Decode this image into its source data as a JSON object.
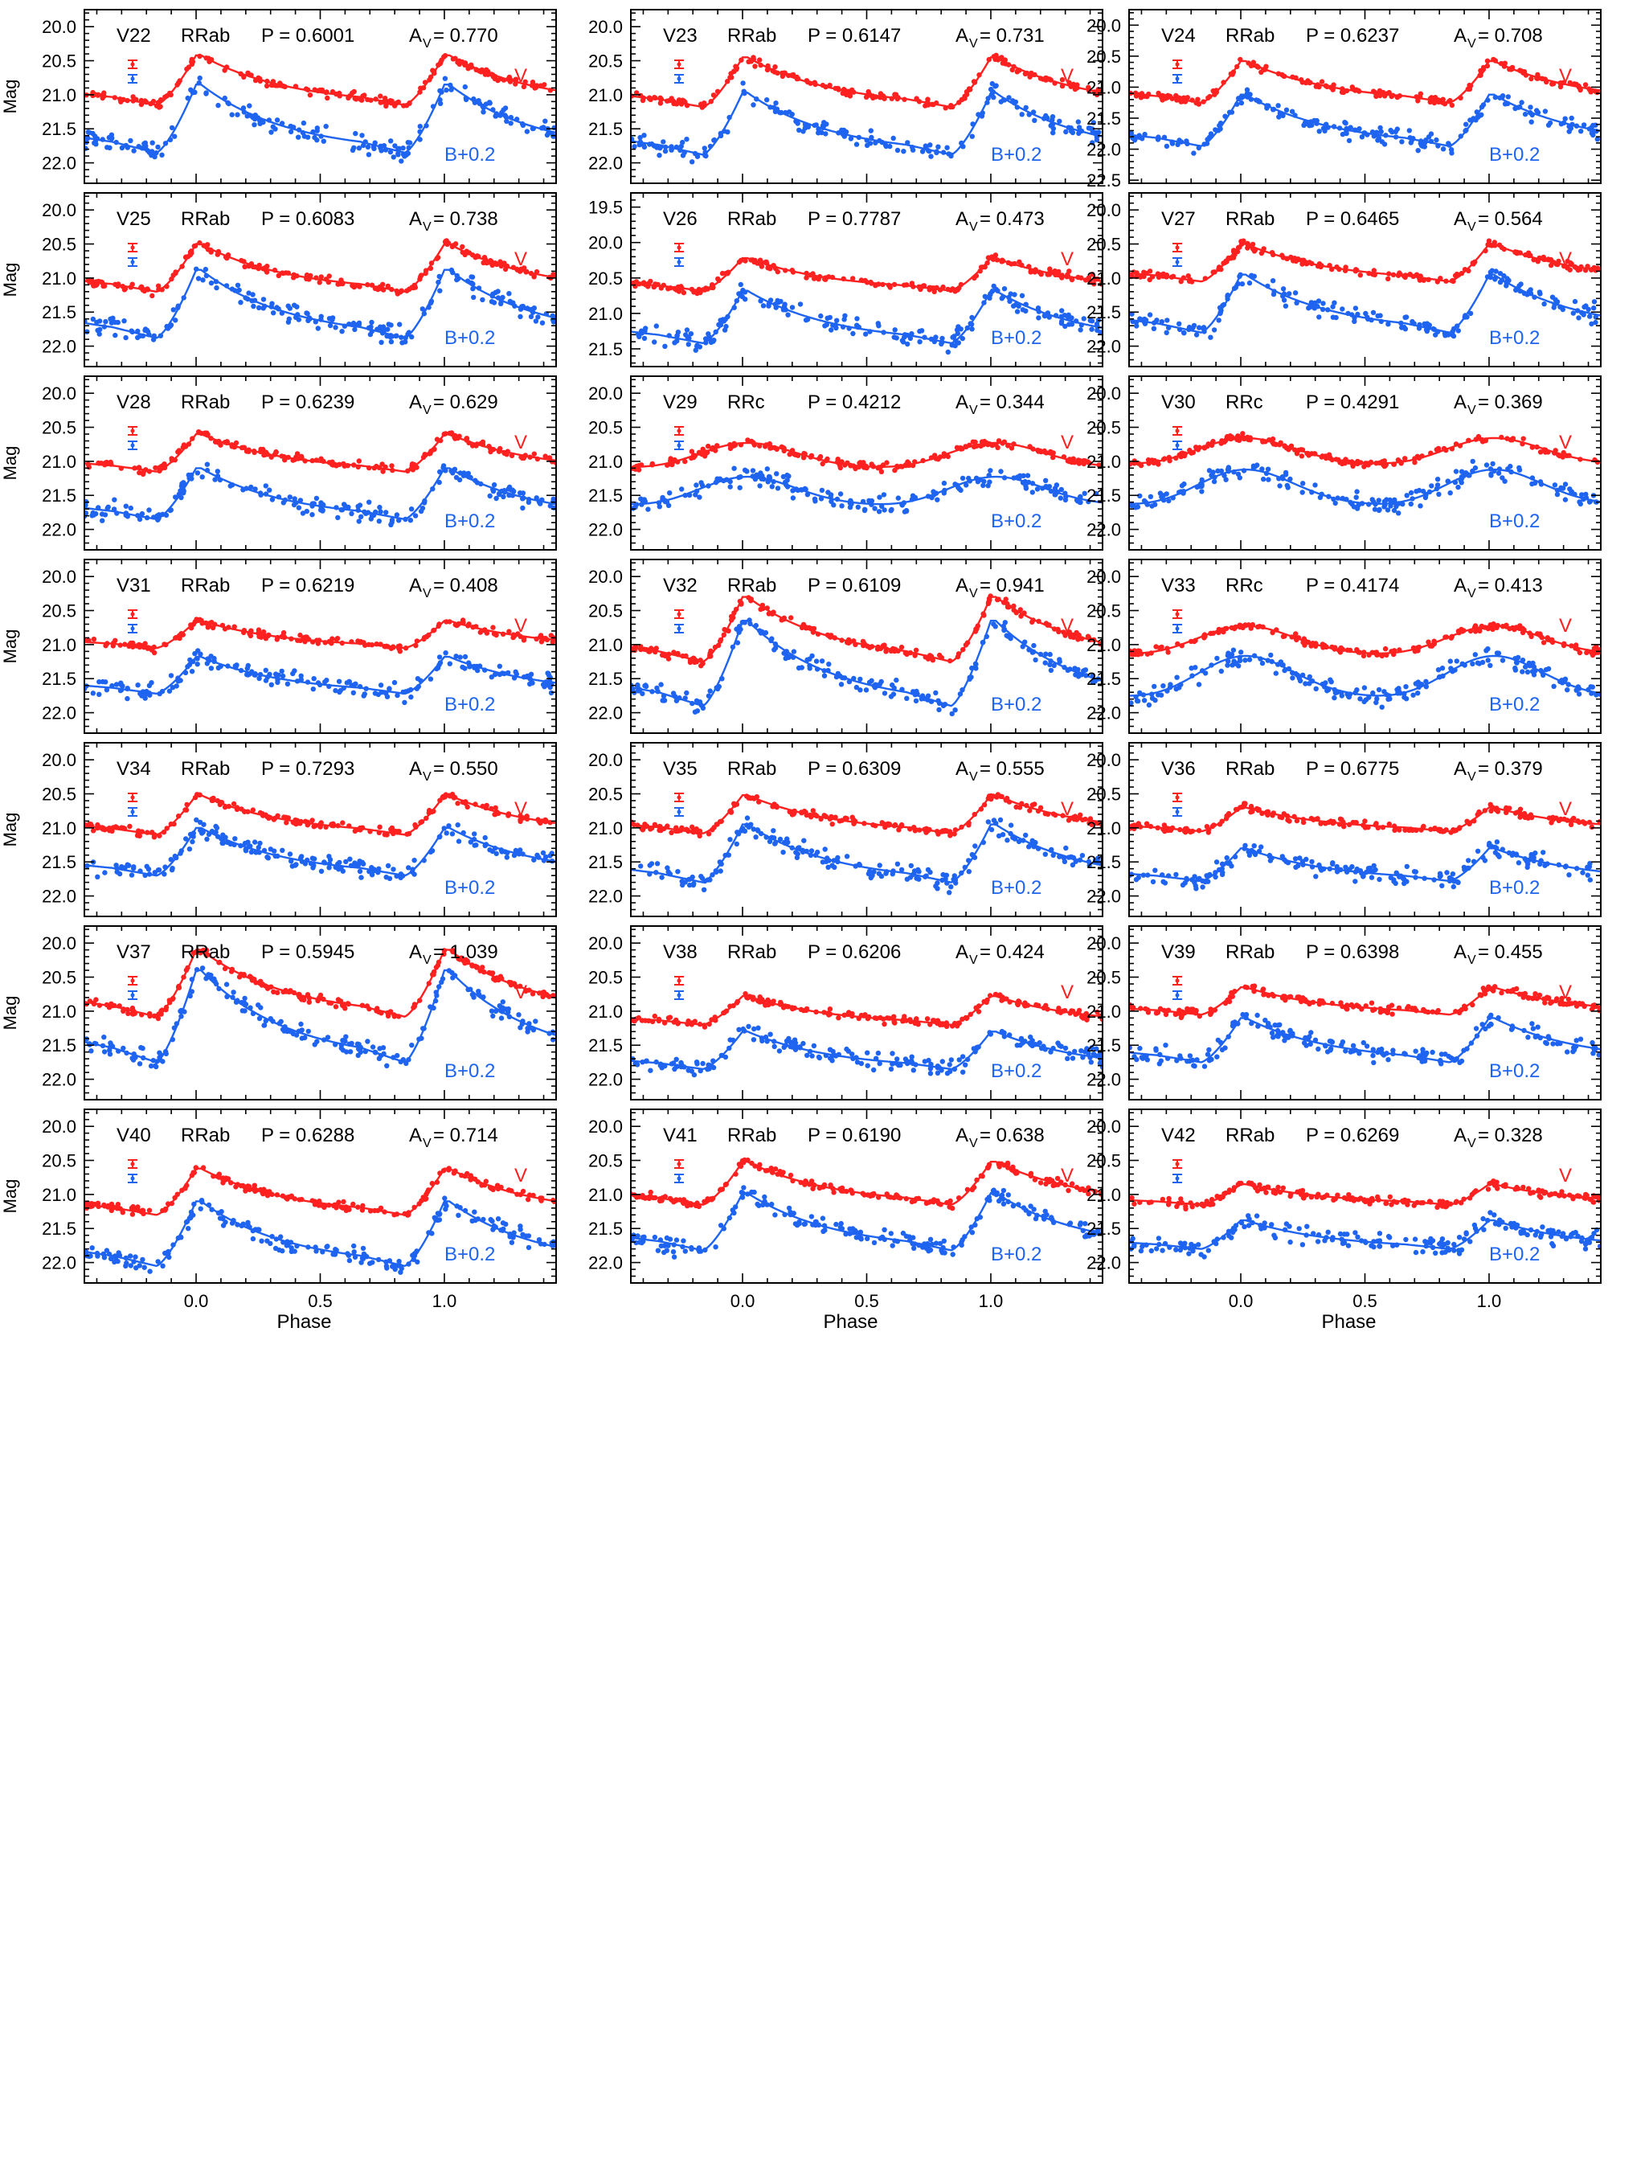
{
  "figure": {
    "ylabel": "Mag",
    "xlabel": "Phase",
    "x_ticks": [
      "0.0",
      "0.5",
      "1.0"
    ],
    "band_label_v": "V",
    "band_label_b": "B+0.2",
    "colors": {
      "v_band": "#ff2020",
      "b_band": "#1e64f0",
      "frame": "#000000"
    }
  },
  "chart_data": [
    {
      "type": "scatter",
      "title": "V22",
      "class": "RRab",
      "period": "P = 0.6001",
      "amplitude": "A",
      "amp_sub": "V",
      "amp_value": " = 0.770",
      "xlim": [
        -0.45,
        1.45
      ],
      "ylim": [
        22.3,
        19.75
      ],
      "ticks": [
        "20.0",
        "20.5",
        "21.0",
        "21.5",
        "22.0"
      ],
      "v_base": 21.15,
      "v_peak": 20.42,
      "b_base": 21.85,
      "b_peak": 20.85,
      "series": [
        {
          "name": "V",
          "color": "#ff2020"
        },
        {
          "name": "B+0.2",
          "color": "#1e64f0"
        }
      ]
    },
    {
      "type": "scatter",
      "title": "V23",
      "class": "RRab",
      "period": "P = 0.6147",
      "amplitude": "A",
      "amp_sub": "V",
      "amp_value": " = 0.731",
      "xlim": [
        -0.45,
        1.45
      ],
      "ylim": [
        22.3,
        19.75
      ],
      "ticks": [
        "20.0",
        "20.5",
        "21.0",
        "21.5",
        "22.0"
      ],
      "v_base": 21.18,
      "v_peak": 20.45,
      "b_base": 21.88,
      "b_peak": 20.97,
      "series": [
        {
          "name": "V",
          "color": "#ff2020"
        },
        {
          "name": "B+0.2",
          "color": "#1e64f0"
        }
      ]
    },
    {
      "type": "scatter",
      "title": "V24",
      "class": "RRab",
      "period": "P = 0.6237",
      "amplitude": "A",
      "amp_sub": "V",
      "amp_value": " = 0.708",
      "xlim": [
        -0.45,
        1.45
      ],
      "ylim": [
        22.55,
        19.75
      ],
      "ticks": [
        "20.0",
        "20.5",
        "21.0",
        "21.5",
        "22.0",
        "22.5"
      ],
      "v_base": 21.25,
      "v_peak": 20.58,
      "b_base": 21.95,
      "b_peak": 21.12,
      "series": [
        {
          "name": "V",
          "color": "#ff2020"
        },
        {
          "name": "B+0.2",
          "color": "#1e64f0"
        }
      ]
    },
    {
      "type": "scatter",
      "title": "V25",
      "class": "RRab",
      "period": "P = 0.6083",
      "amplitude": "A",
      "amp_sub": "V",
      "amp_value": " = 0.738",
      "xlim": [
        -0.45,
        1.45
      ],
      "ylim": [
        22.3,
        19.75
      ],
      "ticks": [
        "20.0",
        "20.5",
        "21.0",
        "21.5",
        "22.0"
      ],
      "v_base": 21.2,
      "v_peak": 20.5,
      "b_base": 21.88,
      "b_peak": 20.88,
      "series": [
        {
          "name": "V",
          "color": "#ff2020"
        },
        {
          "name": "B+0.2",
          "color": "#1e64f0"
        }
      ]
    },
    {
      "type": "scatter",
      "title": "V26",
      "class": "RRab",
      "period": "P = 0.7787",
      "amplitude": "A",
      "amp_sub": "V",
      "amp_value": " = 0.473",
      "xlim": [
        -0.45,
        1.45
      ],
      "ylim": [
        21.75,
        19.3
      ],
      "ticks": [
        "19.5",
        "20.0",
        "20.5",
        "21.0",
        "21.5"
      ],
      "v_base": 20.68,
      "v_peak": 20.22,
      "b_base": 21.42,
      "b_peak": 20.68,
      "series": [
        {
          "name": "V",
          "color": "#ff2020"
        },
        {
          "name": "B+0.2",
          "color": "#1e64f0"
        }
      ]
    },
    {
      "type": "scatter",
      "title": "V27",
      "class": "RRab",
      "period": "P = 0.6465",
      "amplitude": "A",
      "amp_sub": "V",
      "amp_value": " = 0.564",
      "xlim": [
        -0.45,
        1.45
      ],
      "ylim": [
        22.3,
        19.75
      ],
      "ticks": [
        "20.0",
        "20.5",
        "21.0",
        "21.5",
        "22.0"
      ],
      "v_base": 21.05,
      "v_peak": 20.5,
      "b_base": 21.8,
      "b_peak": 20.95,
      "series": [
        {
          "name": "V",
          "color": "#ff2020"
        },
        {
          "name": "B+0.2",
          "color": "#1e64f0"
        }
      ]
    },
    {
      "type": "scatter",
      "title": "V28",
      "class": "RRab",
      "period": "P = 0.6239",
      "amplitude": "A",
      "amp_sub": "V",
      "amp_value": " = 0.629",
      "xlim": [
        -0.45,
        1.45
      ],
      "ylim": [
        22.3,
        19.75
      ],
      "ticks": [
        "20.0",
        "20.5",
        "21.0",
        "21.5",
        "22.0"
      ],
      "v_base": 21.15,
      "v_peak": 20.6,
      "b_base": 21.85,
      "b_peak": 21.1,
      "series": [
        {
          "name": "V",
          "color": "#ff2020"
        },
        {
          "name": "B+0.2",
          "color": "#1e64f0"
        }
      ]
    },
    {
      "type": "scatter",
      "title": "V29",
      "class": "RRc",
      "period": "P = 0.4212",
      "amplitude": "A",
      "amp_sub": "V",
      "amp_value": " = 0.344",
      "xlim": [
        -0.45,
        1.45
      ],
      "ylim": [
        22.3,
        19.75
      ],
      "ticks": [
        "20.0",
        "20.5",
        "21.0",
        "21.5",
        "22.0"
      ],
      "v_base": 21.1,
      "v_peak": 20.75,
      "b_base": 21.65,
      "b_peak": 21.25,
      "series": [
        {
          "name": "V",
          "color": "#ff2020"
        },
        {
          "name": "B+0.2",
          "color": "#1e64f0"
        }
      ]
    },
    {
      "type": "scatter",
      "title": "V30",
      "class": "RRc",
      "period": "P = 0.4291",
      "amplitude": "A",
      "amp_sub": "V",
      "amp_value": " = 0.369",
      "xlim": [
        -0.45,
        1.45
      ],
      "ylim": [
        22.3,
        19.75
      ],
      "ticks": [
        "20.0",
        "20.5",
        "21.0",
        "21.5",
        "22.0"
      ],
      "v_base": 21.05,
      "v_peak": 20.68,
      "b_base": 21.65,
      "b_peak": 21.15,
      "series": [
        {
          "name": "V",
          "color": "#ff2020"
        },
        {
          "name": "B+0.2",
          "color": "#1e64f0"
        }
      ]
    },
    {
      "type": "scatter",
      "title": "V31",
      "class": "RRab",
      "period": "P = 0.6219",
      "amplitude": "A",
      "amp_sub": "V",
      "amp_value": " = 0.408",
      "xlim": [
        -0.45,
        1.45
      ],
      "ylim": [
        22.3,
        19.75
      ],
      "ticks": [
        "20.0",
        "20.5",
        "21.0",
        "21.5",
        "22.0"
      ],
      "v_base": 21.05,
      "v_peak": 20.65,
      "b_base": 21.72,
      "b_peak": 21.18,
      "series": [
        {
          "name": "V",
          "color": "#ff2020"
        },
        {
          "name": "B+0.2",
          "color": "#1e64f0"
        }
      ]
    },
    {
      "type": "scatter",
      "title": "V32",
      "class": "RRab",
      "period": "P = 0.6109",
      "amplitude": "A",
      "amp_sub": "V",
      "amp_value": " = 0.941",
      "xlim": [
        -0.45,
        1.45
      ],
      "ylim": [
        22.3,
        19.75
      ],
      "ticks": [
        "20.0",
        "20.5",
        "21.0",
        "21.5",
        "22.0"
      ],
      "v_base": 21.25,
      "v_peak": 20.3,
      "b_base": 21.9,
      "b_peak": 20.65,
      "series": [
        {
          "name": "V",
          "color": "#ff2020"
        },
        {
          "name": "B+0.2",
          "color": "#1e64f0"
        }
      ]
    },
    {
      "type": "scatter",
      "title": "V33",
      "class": "RRc",
      "period": "P = 0.4174",
      "amplitude": "A",
      "amp_sub": "V",
      "amp_value": " = 0.413",
      "xlim": [
        -0.45,
        1.45
      ],
      "ylim": [
        22.3,
        19.75
      ],
      "ticks": [
        "20.0",
        "20.5",
        "21.0",
        "21.5",
        "22.0"
      ],
      "v_base": 21.15,
      "v_peak": 20.75,
      "b_base": 21.78,
      "b_peak": 21.2,
      "series": [
        {
          "name": "V",
          "color": "#ff2020"
        },
        {
          "name": "B+0.2",
          "color": "#1e64f0"
        }
      ]
    },
    {
      "type": "scatter",
      "title": "V34",
      "class": "RRab",
      "period": "P = 0.7293",
      "amplitude": "A",
      "amp_sub": "V",
      "amp_value": " = 0.550",
      "xlim": [
        -0.45,
        1.45
      ],
      "ylim": [
        22.3,
        19.75
      ],
      "ticks": [
        "20.0",
        "20.5",
        "21.0",
        "21.5",
        "22.0"
      ],
      "v_base": 21.1,
      "v_peak": 20.52,
      "b_base": 21.7,
      "b_peak": 21.0,
      "series": [
        {
          "name": "V",
          "color": "#ff2020"
        },
        {
          "name": "B+0.2",
          "color": "#1e64f0"
        }
      ]
    },
    {
      "type": "scatter",
      "title": "V35",
      "class": "RRab",
      "period": "P = 0.6309",
      "amplitude": "A",
      "amp_sub": "V",
      "amp_value": " = 0.555",
      "xlim": [
        -0.45,
        1.45
      ],
      "ylim": [
        22.3,
        19.75
      ],
      "ticks": [
        "20.0",
        "20.5",
        "21.0",
        "21.5",
        "22.0"
      ],
      "v_base": 21.08,
      "v_peak": 20.52,
      "b_base": 21.8,
      "b_peak": 20.95,
      "series": [
        {
          "name": "V",
          "color": "#ff2020"
        },
        {
          "name": "B+0.2",
          "color": "#1e64f0"
        }
      ]
    },
    {
      "type": "scatter",
      "title": "V36",
      "class": "RRab",
      "period": "P = 0.6775",
      "amplitude": "A",
      "amp_sub": "V",
      "amp_value": " = 0.379",
      "xlim": [
        -0.45,
        1.45
      ],
      "ylim": [
        22.3,
        19.75
      ],
      "ticks": [
        "20.0",
        "20.5",
        "21.0",
        "21.5",
        "22.0"
      ],
      "v_base": 21.05,
      "v_peak": 20.7,
      "b_base": 21.78,
      "b_peak": 21.3,
      "series": [
        {
          "name": "V",
          "color": "#ff2020"
        },
        {
          "name": "B+0.2",
          "color": "#1e64f0"
        }
      ]
    },
    {
      "type": "scatter",
      "title": "V37",
      "class": "RRab",
      "period": "P = 0.5945",
      "amplitude": "A",
      "amp_sub": "V",
      "amp_value": " = 1.039",
      "xlim": [
        -0.45,
        1.45
      ],
      "ylim": [
        22.3,
        19.75
      ],
      "ticks": [
        "20.0",
        "20.5",
        "21.0",
        "21.5",
        "22.0"
      ],
      "v_base": 21.08,
      "v_peak": 20.1,
      "b_base": 21.75,
      "b_peak": 20.4,
      "series": [
        {
          "name": "V",
          "color": "#ff2020"
        },
        {
          "name": "B+0.2",
          "color": "#1e64f0"
        }
      ]
    },
    {
      "type": "scatter",
      "title": "V38",
      "class": "RRab",
      "period": "P = 0.6206",
      "amplitude": "A",
      "amp_sub": "V",
      "amp_value": " = 0.424",
      "xlim": [
        -0.45,
        1.45
      ],
      "ylim": [
        22.3,
        19.75
      ],
      "ticks": [
        "20.0",
        "20.5",
        "21.0",
        "21.5",
        "22.0"
      ],
      "v_base": 21.2,
      "v_peak": 20.78,
      "b_base": 21.85,
      "b_peak": 21.3,
      "series": [
        {
          "name": "V",
          "color": "#ff2020"
        },
        {
          "name": "B+0.2",
          "color": "#1e64f0"
        }
      ]
    },
    {
      "type": "scatter",
      "title": "V39",
      "class": "RRab",
      "period": "P = 0.6398",
      "amplitude": "A",
      "amp_sub": "V",
      "amp_value": " = 0.455",
      "xlim": [
        -0.45,
        1.45
      ],
      "ylim": [
        22.3,
        19.75
      ],
      "ticks": [
        "20.0",
        "20.5",
        "21.0",
        "21.5",
        "22.0"
      ],
      "v_base": 21.05,
      "v_peak": 20.65,
      "b_base": 21.75,
      "b_peak": 21.1,
      "series": [
        {
          "name": "V",
          "color": "#ff2020"
        },
        {
          "name": "B+0.2",
          "color": "#1e64f0"
        }
      ]
    },
    {
      "type": "scatter",
      "title": "V40",
      "class": "RRab",
      "period": "P = 0.6288",
      "amplitude": "A",
      "amp_sub": "V",
      "amp_value": " = 0.714",
      "xlim": [
        -0.45,
        1.45
      ],
      "ylim": [
        22.3,
        19.75
      ],
      "ticks": [
        "20.0",
        "20.5",
        "21.0",
        "21.5",
        "22.0"
      ],
      "v_base": 21.3,
      "v_peak": 20.62,
      "b_base": 22.05,
      "b_peak": 21.1,
      "series": [
        {
          "name": "V",
          "color": "#ff2020"
        },
        {
          "name": "B+0.2",
          "color": "#1e64f0"
        }
      ]
    },
    {
      "type": "scatter",
      "title": "V41",
      "class": "RRab",
      "period": "P = 0.6190",
      "amplitude": "A",
      "amp_sub": "V",
      "amp_value": " = 0.638",
      "xlim": [
        -0.45,
        1.45
      ],
      "ylim": [
        22.3,
        19.75
      ],
      "ticks": [
        "20.0",
        "20.5",
        "21.0",
        "21.5",
        "22.0"
      ],
      "v_base": 21.15,
      "v_peak": 20.52,
      "b_base": 21.82,
      "b_peak": 20.98,
      "series": [
        {
          "name": "V",
          "color": "#ff2020"
        },
        {
          "name": "B+0.2",
          "color": "#1e64f0"
        }
      ]
    },
    {
      "type": "scatter",
      "title": "V42",
      "class": "RRab",
      "period": "P = 0.6269",
      "amplitude": "A",
      "amp_sub": "V",
      "amp_value": " = 0.328",
      "xlim": [
        -0.45,
        1.45
      ],
      "ylim": [
        22.3,
        19.75
      ],
      "ticks": [
        "20.0",
        "20.5",
        "21.0",
        "21.5",
        "22.0"
      ],
      "v_base": 21.15,
      "v_peak": 20.85,
      "b_base": 21.8,
      "b_peak": 21.38,
      "series": [
        {
          "name": "V",
          "color": "#ff2020"
        },
        {
          "name": "B+0.2",
          "color": "#1e64f0"
        }
      ]
    }
  ]
}
